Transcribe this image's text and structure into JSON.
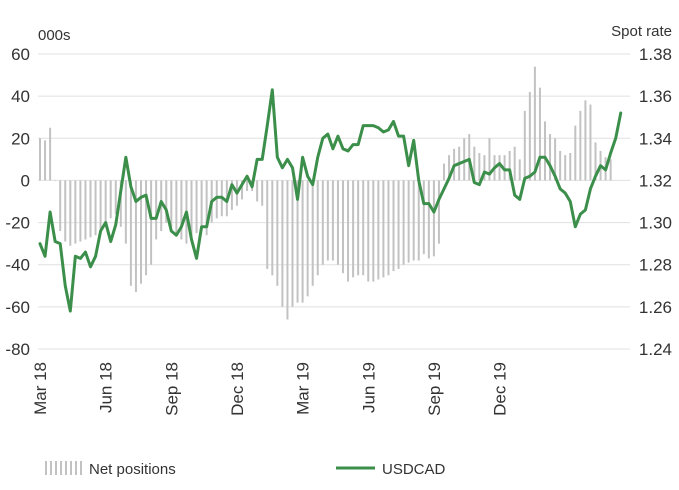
{
  "chart_data": {
    "type": "bar+line",
    "left_axis_unit": "000s",
    "right_axis_unit": "Spot rate",
    "left_ylim": [
      -80,
      60
    ],
    "left_ticks": [
      "60",
      "40",
      "20",
      "0",
      "-20",
      "-40",
      "-60",
      "-80"
    ],
    "right_ylim": [
      1.24,
      1.38
    ],
    "right_ticks": [
      "1.38",
      "1.36",
      "1.34",
      "1.32",
      "1.30",
      "1.28",
      "1.26",
      "1.24"
    ],
    "x_tick_labels": [
      "Mar 18",
      "Jun 18",
      "Sep 18",
      "Dec 18",
      "Mar 19",
      "Jun 19",
      "Sep 19",
      "Dec 19"
    ],
    "x_tick_indices": [
      0,
      13,
      26,
      39,
      52,
      65,
      78,
      91
    ],
    "grid": "horizontal",
    "legend_placement": "bottom",
    "series": [
      {
        "name": "Net positions",
        "type": "bar",
        "axis": "left",
        "color": "#c2c2c2",
        "values": [
          20,
          19,
          25,
          0,
          -24,
          -29,
          -31,
          -30,
          -29,
          -28,
          -27,
          -26,
          -24,
          -20,
          -18,
          -16,
          -22,
          -30,
          -50,
          -53,
          -49,
          -45,
          -40,
          -28,
          -24,
          -20,
          -22,
          -26,
          -28,
          -30,
          -27,
          -25,
          -24,
          -26,
          -20,
          -18,
          -17,
          -17,
          -14,
          -12,
          -9,
          -5,
          -5,
          -10,
          -12,
          -42,
          -45,
          -50,
          -60,
          -66,
          -60,
          -58,
          -58,
          -55,
          -50,
          -45,
          -40,
          -38,
          -38,
          -40,
          -44,
          -48,
          -46,
          -45,
          -45,
          -48,
          -48,
          -47,
          -46,
          -45,
          -43,
          -42,
          -40,
          -39,
          -38,
          -38,
          -35,
          -37,
          -36,
          -30,
          8,
          12,
          15,
          16,
          20,
          22,
          16,
          13,
          12,
          20,
          12,
          12,
          12,
          14,
          16,
          10,
          33,
          42,
          54,
          44,
          28,
          22,
          20,
          14,
          12,
          13,
          26,
          33,
          38,
          36,
          18,
          14,
          11,
          10
        ]
      },
      {
        "name": "USDCAD",
        "type": "line",
        "axis": "right",
        "color": "#3b8f4a",
        "values": [
          1.29,
          1.284,
          1.305,
          1.291,
          1.29,
          1.27,
          1.258,
          1.284,
          1.283,
          1.286,
          1.279,
          1.284,
          1.296,
          1.3,
          1.291,
          1.299,
          1.315,
          1.331,
          1.317,
          1.31,
          1.312,
          1.313,
          1.302,
          1.302,
          1.31,
          1.306,
          1.296,
          1.294,
          1.298,
          1.305,
          1.292,
          1.283,
          1.298,
          1.298,
          1.31,
          1.312,
          1.312,
          1.31,
          1.318,
          1.314,
          1.318,
          1.322,
          1.317,
          1.33,
          1.33,
          1.346,
          1.363,
          1.331,
          1.326,
          1.33,
          1.326,
          1.311,
          1.331,
          1.322,
          1.318,
          1.331,
          1.34,
          1.342,
          1.335,
          1.341,
          1.335,
          1.334,
          1.337,
          1.337,
          1.346,
          1.346,
          1.346,
          1.345,
          1.343,
          1.344,
          1.348,
          1.341,
          1.341,
          1.327,
          1.339,
          1.32,
          1.309,
          1.309,
          1.305,
          1.311,
          1.316,
          1.321,
          1.327,
          1.328,
          1.329,
          1.33,
          1.319,
          1.318,
          1.324,
          1.323,
          1.326,
          1.328,
          1.325,
          1.325,
          1.313,
          1.311,
          1.321,
          1.322,
          1.324,
          1.331,
          1.331,
          1.327,
          1.322,
          1.316,
          1.314,
          1.31,
          1.298,
          1.304,
          1.306,
          1.316,
          1.322,
          1.327,
          1.325,
          1.333,
          1.34,
          1.352
        ]
      }
    ],
    "legend": [
      {
        "label": "Net positions",
        "symbol": "bars"
      },
      {
        "label": "USDCAD",
        "symbol": "line"
      }
    ]
  }
}
